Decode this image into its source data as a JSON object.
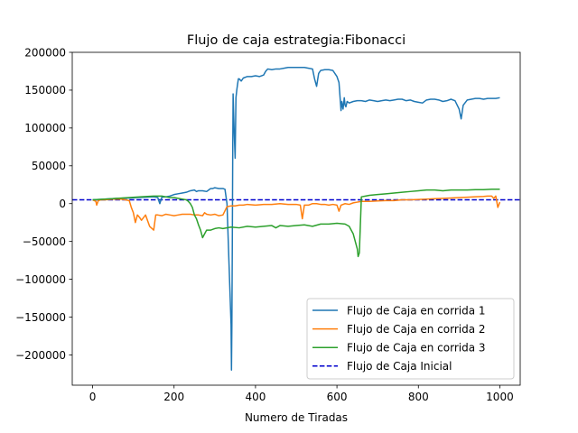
{
  "chart_data": {
    "type": "line",
    "title": "Flujo de caja estrategia:Fibonacci",
    "xlabel": "Numero de Tiradas",
    "ylabel": "",
    "xlim": [
      -50,
      1050
    ],
    "ylim": [
      -240000,
      200000
    ],
    "x_ticks": [
      0,
      200,
      400,
      600,
      800,
      1000
    ],
    "x_tick_labels": [
      "0",
      "200",
      "400",
      "600",
      "800",
      "1000"
    ],
    "y_ticks": [
      200000,
      150000,
      100000,
      50000,
      0,
      -50000,
      -100000,
      -150000,
      -200000
    ],
    "y_tick_labels": [
      "200000",
      "150000",
      "100000",
      "50000",
      "0",
      "−50000",
      "−100000",
      "−150000",
      "−200000"
    ],
    "grid": false,
    "legend_position": "lower-right",
    "series": [
      {
        "name": "Flujo de Caja en corrida 1",
        "color": "#1f77b4",
        "x": [
          0,
          30,
          60,
          90,
          110,
          130,
          150,
          160,
          165,
          170,
          180,
          190,
          200,
          210,
          220,
          230,
          240,
          250,
          255,
          260,
          270,
          280,
          285,
          290,
          295,
          300,
          310,
          320,
          325,
          330,
          335,
          340,
          341,
          342,
          343,
          344,
          345,
          346,
          348,
          350,
          352,
          354,
          356,
          358,
          360,
          365,
          370,
          380,
          390,
          400,
          410,
          420,
          425,
          430,
          440,
          450,
          460,
          470,
          480,
          490,
          500,
          510,
          520,
          530,
          540,
          545,
          550,
          555,
          560,
          570,
          580,
          590,
          600,
          605,
          610,
          612,
          615,
          618,
          620,
          622,
          625,
          630,
          640,
          650,
          660,
          670,
          680,
          690,
          700,
          710,
          720,
          730,
          740,
          750,
          760,
          770,
          780,
          790,
          800,
          810,
          820,
          830,
          840,
          850,
          860,
          870,
          880,
          890,
          900,
          905,
          910,
          920,
          930,
          940,
          950,
          960,
          970,
          980,
          990,
          1000
        ],
        "y": [
          5000,
          6000,
          7000,
          7500,
          8000,
          8500,
          9000,
          8000,
          0,
          8500,
          9000,
          10000,
          12000,
          13000,
          14000,
          15000,
          17000,
          18000,
          16000,
          17000,
          17000,
          16000,
          18000,
          20000,
          20000,
          21000,
          20000,
          20000,
          19000,
          0,
          -80000,
          -160000,
          -220000,
          -160000,
          -60000,
          60000,
          145000,
          125000,
          90000,
          60000,
          140000,
          150000,
          158000,
          165000,
          165000,
          162000,
          166000,
          168000,
          168000,
          169000,
          168000,
          170000,
          175000,
          178000,
          177000,
          178000,
          178000,
          179000,
          180000,
          180000,
          180000,
          180000,
          180000,
          179000,
          178000,
          165000,
          155000,
          172000,
          176000,
          177000,
          177000,
          176000,
          168000,
          160000,
          123000,
          135000,
          125000,
          140000,
          130000,
          128000,
          135000,
          133000,
          135000,
          136000,
          136000,
          135000,
          137000,
          136000,
          135000,
          136000,
          137000,
          136000,
          137000,
          138000,
          138000,
          136000,
          137000,
          135000,
          134000,
          133000,
          137000,
          138000,
          138000,
          137000,
          135000,
          136000,
          138000,
          136000,
          125000,
          112000,
          130000,
          137000,
          138000,
          139000,
          139000,
          138000,
          139000,
          139000,
          139000,
          140000
        ]
      },
      {
        "name": "Flujo de Caja en corrida 2",
        "color": "#ff7f0e",
        "x": [
          0,
          8,
          10,
          14,
          20,
          30,
          50,
          70,
          80,
          90,
          95,
          100,
          105,
          110,
          115,
          120,
          130,
          140,
          150,
          155,
          160,
          170,
          180,
          190,
          200,
          210,
          220,
          230,
          240,
          250,
          260,
          270,
          275,
          280,
          290,
          300,
          310,
          320,
          330,
          340,
          350,
          360,
          370,
          380,
          400,
          420,
          440,
          460,
          480,
          500,
          510,
          515,
          520,
          530,
          540,
          550,
          560,
          570,
          580,
          590,
          600,
          605,
          610,
          620,
          630,
          640,
          650,
          660,
          680,
          700,
          720,
          740,
          760,
          780,
          800,
          820,
          840,
          860,
          880,
          900,
          920,
          940,
          960,
          970,
          980,
          985,
          990,
          995,
          1000
        ],
        "y": [
          5000,
          3000,
          -2000,
          4000,
          5000,
          5000,
          6000,
          6000,
          5000,
          4000,
          -5000,
          -12000,
          -25000,
          -15000,
          -18000,
          -22000,
          -15000,
          -30000,
          -35000,
          -15000,
          -15000,
          -16000,
          -14000,
          -15000,
          -16000,
          -15000,
          -14000,
          -14000,
          -14000,
          -15000,
          -15000,
          -16000,
          -12000,
          -14000,
          -15000,
          -14000,
          -16000,
          -15000,
          -4000,
          -3000,
          -3000,
          -2000,
          -2000,
          -1000,
          -2000,
          -1000,
          -1000,
          0,
          -1000,
          -1000,
          -2000,
          -20000,
          -2000,
          -2000,
          0,
          0,
          -1000,
          -1000,
          -2000,
          -1000,
          -2000,
          -10000,
          -2000,
          0,
          -1000,
          1000,
          2000,
          3000,
          3000,
          3500,
          4000,
          4000,
          5000,
          5000,
          5500,
          6000,
          6500,
          7000,
          7500,
          8000,
          8500,
          9000,
          9500,
          10000,
          10000,
          7000,
          10000,
          -5000,
          2000
        ]
      },
      {
        "name": "Flujo de Caja en corrida 3",
        "color": "#2ca02c",
        "x": [
          0,
          30,
          60,
          90,
          120,
          150,
          170,
          180,
          190,
          200,
          210,
          220,
          230,
          235,
          240,
          245,
          250,
          255,
          260,
          265,
          270,
          275,
          280,
          290,
          300,
          310,
          320,
          340,
          360,
          380,
          400,
          420,
          440,
          450,
          460,
          480,
          500,
          520,
          540,
          560,
          580,
          600,
          620,
          630,
          640,
          645,
          650,
          652,
          655,
          660,
          670,
          680,
          700,
          720,
          740,
          760,
          780,
          800,
          820,
          840,
          860,
          880,
          900,
          920,
          940,
          960,
          980,
          1000
        ],
        "y": [
          5000,
          6000,
          7000,
          8000,
          9000,
          10000,
          10000,
          9000,
          8000,
          8000,
          7000,
          6000,
          5000,
          3000,
          0,
          -5000,
          -15000,
          -20000,
          -28000,
          -35000,
          -45000,
          -40000,
          -35000,
          -35000,
          -33000,
          -32000,
          -33000,
          -31000,
          -32000,
          -30000,
          -31000,
          -30000,
          -29000,
          -32000,
          -29000,
          -30000,
          -29000,
          -28000,
          -30000,
          -27000,
          -27000,
          -26000,
          -27000,
          -30000,
          -40000,
          -50000,
          -60000,
          -70000,
          -65000,
          9000,
          10000,
          11000,
          12000,
          13000,
          14000,
          15000,
          16000,
          17000,
          18000,
          18000,
          17000,
          18000,
          18000,
          18000,
          18500,
          18500,
          19000,
          19000
        ]
      },
      {
        "name": "Flujo de Caja Inicial",
        "color": "#0000cd",
        "dashed": true,
        "x": [
          -50,
          1050
        ],
        "y": [
          5000,
          5000
        ]
      }
    ]
  }
}
